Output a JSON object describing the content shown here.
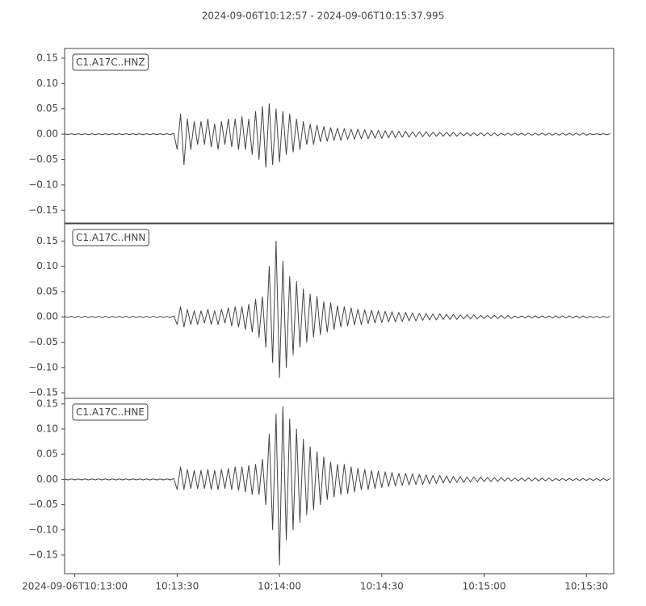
{
  "title": "2024-09-06T10:12:57  -  2024-09-06T10:15:37.995",
  "chart_data": [
    {
      "type": "line",
      "label": "C1.A17C..HNZ",
      "color": "#444444",
      "xlim": [
        0,
        160.995
      ],
      "ylim": [
        -0.175,
        0.169
      ],
      "yticks": [
        {
          "value": -0.15,
          "label": "−0.15"
        },
        {
          "value": -0.1,
          "label": "−0.10"
        },
        {
          "value": -0.05,
          "label": "−0.05"
        },
        {
          "value": 0,
          "label": "0.00"
        },
        {
          "value": 0.05,
          "label": "0.05"
        },
        {
          "value": 0.1,
          "label": "0.10"
        },
        {
          "value": 0.15,
          "label": "0.15"
        }
      ],
      "x": [
        0,
        1,
        2,
        3,
        4,
        5,
        6,
        7,
        8,
        9,
        10,
        11,
        12,
        13,
        14,
        15,
        16,
        17,
        18,
        19,
        20,
        21,
        22,
        23,
        24,
        25,
        26,
        27,
        28,
        29,
        30,
        31,
        32,
        33,
        34,
        35,
        36,
        37,
        38,
        39,
        40,
        41,
        42,
        43,
        44,
        45,
        46,
        47,
        48,
        49,
        50,
        51,
        52,
        53,
        54,
        55,
        56,
        57,
        58,
        59,
        60,
        61,
        62,
        63,
        64,
        65,
        66,
        67,
        68,
        69,
        70,
        71,
        72,
        73,
        74,
        75,
        76,
        77,
        78,
        79,
        80,
        81,
        82,
        83,
        84,
        85,
        86,
        87,
        88,
        89,
        90,
        91,
        92,
        93,
        94,
        95,
        96,
        97,
        98,
        99,
        100,
        101,
        102,
        103,
        104,
        105,
        106,
        107,
        108,
        109,
        110,
        111,
        112,
        113,
        114,
        115,
        116,
        117,
        118,
        119,
        120,
        121,
        122,
        123,
        124,
        125,
        126,
        127,
        128,
        129,
        130,
        131,
        132,
        133,
        134,
        135,
        136,
        137,
        138,
        139,
        140,
        141,
        142,
        143,
        144,
        145,
        146,
        147,
        148,
        149,
        150,
        151,
        152,
        153,
        154,
        155,
        156,
        157,
        158,
        159,
        160
      ],
      "values": [
        0.001,
        -0.001,
        0.001,
        -0.001,
        0.001,
        -0.001,
        0.001,
        -0.001,
        0.001,
        -0.001,
        0.001,
        -0.001,
        0.001,
        -0.001,
        0.001,
        -0.001,
        0.001,
        -0.001,
        0.001,
        -0.001,
        0.001,
        -0.001,
        0.001,
        -0.001,
        0.001,
        -0.001,
        0.001,
        -0.001,
        0.001,
        -0.001,
        0.001,
        -0.001,
        0.002,
        -0.03,
        0.04,
        -0.06,
        0.03,
        -0.03,
        0.025,
        -0.02,
        0.025,
        -0.02,
        0.03,
        -0.025,
        0.02,
        -0.03,
        0.025,
        -0.02,
        0.03,
        -0.025,
        0.03,
        -0.03,
        0.035,
        -0.03,
        0.03,
        -0.04,
        0.045,
        -0.05,
        0.055,
        -0.065,
        0.06,
        -0.06,
        0.05,
        -0.055,
        0.045,
        -0.04,
        0.04,
        -0.035,
        0.03,
        -0.03,
        0.025,
        -0.02,
        0.02,
        -0.02,
        0.018,
        -0.015,
        0.015,
        -0.014,
        0.013,
        -0.012,
        0.012,
        -0.012,
        0.011,
        -0.01,
        0.01,
        -0.01,
        0.01,
        -0.009,
        0.009,
        -0.009,
        0.008,
        -0.008,
        0.008,
        -0.008,
        0.007,
        -0.007,
        0.007,
        -0.007,
        0.006,
        -0.006,
        0.006,
        -0.006,
        0.005,
        -0.005,
        0.005,
        -0.005,
        0.005,
        -0.005,
        0.004,
        -0.004,
        0.004,
        -0.004,
        0.004,
        -0.004,
        0.004,
        -0.004,
        0.003,
        -0.003,
        0.003,
        -0.003,
        0.003,
        -0.003,
        0.003,
        -0.003,
        0.003,
        -0.003,
        0.003,
        -0.003,
        0.002,
        -0.002,
        0.002,
        -0.002,
        0.002,
        -0.002,
        0.002,
        -0.002,
        0.002,
        -0.002,
        0.002,
        -0.002,
        0.002,
        -0.002,
        0.002,
        -0.002,
        0.002,
        -0.002,
        0.002,
        -0.002,
        0.002,
        -0.002,
        0.002,
        -0.002,
        0.002,
        -0.002,
        0.001,
        -0.001,
        0.001,
        -0.001,
        0.001,
        -0.001,
        0.001
      ]
    },
    {
      "type": "line",
      "label": "C1.A17C..HNN",
      "color": "#444444",
      "xlim": [
        0,
        160.995
      ],
      "ylim": [
        -0.161,
        0.184
      ],
      "yticks": [
        {
          "value": -0.15,
          "label": "−0.15"
        },
        {
          "value": -0.1,
          "label": "−0.10"
        },
        {
          "value": -0.05,
          "label": "−0.05"
        },
        {
          "value": 0,
          "label": "0.00"
        },
        {
          "value": 0.05,
          "label": "0.05"
        },
        {
          "value": 0.1,
          "label": "0.10"
        },
        {
          "value": 0.15,
          "label": "0.15"
        }
      ],
      "x": [
        0,
        1,
        2,
        3,
        4,
        5,
        6,
        7,
        8,
        9,
        10,
        11,
        12,
        13,
        14,
        15,
        16,
        17,
        18,
        19,
        20,
        21,
        22,
        23,
        24,
        25,
        26,
        27,
        28,
        29,
        30,
        31,
        32,
        33,
        34,
        35,
        36,
        37,
        38,
        39,
        40,
        41,
        42,
        43,
        44,
        45,
        46,
        47,
        48,
        49,
        50,
        51,
        52,
        53,
        54,
        55,
        56,
        57,
        58,
        59,
        60,
        61,
        62,
        63,
        64,
        65,
        66,
        67,
        68,
        69,
        70,
        71,
        72,
        73,
        74,
        75,
        76,
        77,
        78,
        79,
        80,
        81,
        82,
        83,
        84,
        85,
        86,
        87,
        88,
        89,
        90,
        91,
        92,
        93,
        94,
        95,
        96,
        97,
        98,
        99,
        100,
        101,
        102,
        103,
        104,
        105,
        106,
        107,
        108,
        109,
        110,
        111,
        112,
        113,
        114,
        115,
        116,
        117,
        118,
        119,
        120,
        121,
        122,
        123,
        124,
        125,
        126,
        127,
        128,
        129,
        130,
        131,
        132,
        133,
        134,
        135,
        136,
        137,
        138,
        139,
        140,
        141,
        142,
        143,
        144,
        145,
        146,
        147,
        148,
        149,
        150,
        151,
        152,
        153,
        154,
        155,
        156,
        157,
        158,
        159,
        160
      ],
      "values": [
        0.001,
        -0.001,
        0.001,
        -0.001,
        0.001,
        -0.001,
        0.001,
        -0.001,
        0.001,
        -0.001,
        0.001,
        -0.001,
        0.001,
        -0.001,
        0.001,
        -0.001,
        0.001,
        -0.001,
        0.001,
        -0.001,
        0.001,
        -0.001,
        0.001,
        -0.001,
        0.001,
        -0.001,
        0.001,
        -0.001,
        0.001,
        -0.001,
        0.001,
        -0.001,
        0.002,
        -0.015,
        0.02,
        -0.02,
        0.015,
        -0.015,
        0.012,
        -0.015,
        0.012,
        -0.012,
        0.015,
        -0.015,
        0.012,
        -0.015,
        0.015,
        -0.012,
        0.018,
        -0.018,
        0.02,
        -0.02,
        0.02,
        -0.025,
        0.025,
        -0.03,
        0.035,
        -0.04,
        0.04,
        -0.06,
        0.1,
        -0.09,
        0.15,
        -0.12,
        0.11,
        -0.1,
        0.08,
        -0.075,
        0.07,
        -0.06,
        0.055,
        -0.05,
        0.045,
        -0.04,
        0.04,
        -0.035,
        0.03,
        -0.03,
        0.028,
        -0.025,
        0.022,
        -0.02,
        0.02,
        -0.018,
        0.018,
        -0.016,
        0.015,
        -0.015,
        0.014,
        -0.013,
        0.013,
        -0.012,
        0.012,
        -0.011,
        0.011,
        -0.01,
        0.01,
        -0.01,
        0.009,
        -0.009,
        0.009,
        -0.008,
        0.008,
        -0.008,
        0.007,
        -0.007,
        0.007,
        -0.006,
        0.006,
        -0.006,
        0.006,
        -0.005,
        0.005,
        -0.005,
        0.005,
        -0.005,
        0.004,
        -0.004,
        0.004,
        -0.004,
        0.004,
        -0.004,
        0.003,
        -0.003,
        0.003,
        -0.003,
        0.003,
        -0.003,
        0.003,
        -0.003,
        0.003,
        -0.003,
        0.002,
        -0.002,
        0.002,
        -0.002,
        0.002,
        -0.002,
        0.002,
        -0.002,
        0.002,
        -0.002,
        0.002,
        -0.002,
        0.002,
        -0.002,
        0.002,
        -0.002,
        0.002,
        -0.002,
        0.002,
        -0.002,
        0.002,
        -0.002,
        0.001,
        -0.001,
        0.001,
        -0.001,
        0.001,
        -0.001,
        0.001
      ]
    },
    {
      "type": "line",
      "label": "C1.A17C..HNE",
      "color": "#444444",
      "xlim": [
        0,
        160.995
      ],
      "ylim": [
        -0.187,
        0.161
      ],
      "yticks": [
        {
          "value": -0.15,
          "label": "−0.15"
        },
        {
          "value": -0.1,
          "label": "−0.10"
        },
        {
          "value": -0.05,
          "label": "−0.05"
        },
        {
          "value": 0,
          "label": "0.00"
        },
        {
          "value": 0.05,
          "label": "0.05"
        },
        {
          "value": 0.1,
          "label": "0.10"
        },
        {
          "value": 0.15,
          "label": "0.15"
        }
      ],
      "xticks": [
        {
          "value": 3,
          "label": "2024-09-06T10:13:00"
        },
        {
          "value": 33,
          "label": "10:13:30"
        },
        {
          "value": 63,
          "label": "10:14:00"
        },
        {
          "value": 93,
          "label": "10:14:30"
        },
        {
          "value": 123,
          "label": "10:15:00"
        },
        {
          "value": 153,
          "label": "10:15:30"
        }
      ],
      "x": [
        0,
        1,
        2,
        3,
        4,
        5,
        6,
        7,
        8,
        9,
        10,
        11,
        12,
        13,
        14,
        15,
        16,
        17,
        18,
        19,
        20,
        21,
        22,
        23,
        24,
        25,
        26,
        27,
        28,
        29,
        30,
        31,
        32,
        33,
        34,
        35,
        36,
        37,
        38,
        39,
        40,
        41,
        42,
        43,
        44,
        45,
        46,
        47,
        48,
        49,
        50,
        51,
        52,
        53,
        54,
        55,
        56,
        57,
        58,
        59,
        60,
        61,
        62,
        63,
        64,
        65,
        66,
        67,
        68,
        69,
        70,
        71,
        72,
        73,
        74,
        75,
        76,
        77,
        78,
        79,
        80,
        81,
        82,
        83,
        84,
        85,
        86,
        87,
        88,
        89,
        90,
        91,
        92,
        93,
        94,
        95,
        96,
        97,
        98,
        99,
        100,
        101,
        102,
        103,
        104,
        105,
        106,
        107,
        108,
        109,
        110,
        111,
        112,
        113,
        114,
        115,
        116,
        117,
        118,
        119,
        120,
        121,
        122,
        123,
        124,
        125,
        126,
        127,
        128,
        129,
        130,
        131,
        132,
        133,
        134,
        135,
        136,
        137,
        138,
        139,
        140,
        141,
        142,
        143,
        144,
        145,
        146,
        147,
        148,
        149,
        150,
        151,
        152,
        153,
        154,
        155,
        156,
        157,
        158,
        159,
        160
      ],
      "values": [
        0.001,
        -0.001,
        0.001,
        -0.001,
        0.001,
        -0.001,
        0.001,
        -0.001,
        0.001,
        -0.001,
        0.001,
        -0.001,
        0.001,
        -0.001,
        0.001,
        -0.001,
        0.001,
        -0.001,
        0.001,
        -0.001,
        0.001,
        -0.001,
        0.001,
        -0.001,
        0.001,
        -0.001,
        0.001,
        -0.001,
        0.001,
        -0.001,
        0.001,
        -0.001,
        0.002,
        -0.02,
        0.025,
        -0.02,
        0.02,
        -0.018,
        0.018,
        -0.018,
        0.018,
        -0.018,
        0.02,
        -0.02,
        0.018,
        -0.02,
        0.02,
        -0.018,
        0.022,
        -0.02,
        0.025,
        -0.022,
        0.025,
        -0.025,
        0.028,
        -0.03,
        0.03,
        -0.03,
        0.04,
        -0.05,
        0.09,
        -0.1,
        0.13,
        -0.17,
        0.145,
        -0.12,
        0.12,
        -0.1,
        0.1,
        -0.085,
        0.08,
        -0.07,
        0.065,
        -0.06,
        0.055,
        -0.05,
        0.045,
        -0.04,
        0.035,
        -0.035,
        0.03,
        -0.03,
        0.03,
        -0.028,
        0.025,
        -0.025,
        0.022,
        -0.02,
        0.02,
        -0.02,
        0.018,
        -0.018,
        0.016,
        -0.016,
        0.015,
        -0.014,
        0.014,
        -0.013,
        0.012,
        -0.012,
        0.012,
        -0.011,
        0.011,
        -0.01,
        0.01,
        -0.01,
        0.009,
        -0.009,
        0.008,
        -0.008,
        0.008,
        -0.007,
        0.007,
        -0.007,
        0.006,
        -0.006,
        0.006,
        -0.006,
        0.005,
        -0.005,
        0.005,
        -0.005,
        0.005,
        -0.004,
        0.004,
        -0.004,
        0.004,
        -0.004,
        0.004,
        -0.003,
        0.003,
        -0.003,
        0.003,
        -0.003,
        0.003,
        -0.003,
        0.003,
        -0.003,
        0.003,
        -0.003,
        0.003,
        -0.003,
        0.003,
        -0.003,
        0.002,
        -0.002,
        0.002,
        -0.002,
        0.002,
        -0.002,
        0.002,
        -0.002,
        0.002,
        -0.002,
        0.002,
        -0.002,
        0.002,
        -0.002,
        0.002,
        -0.002,
        0.002
      ]
    }
  ]
}
